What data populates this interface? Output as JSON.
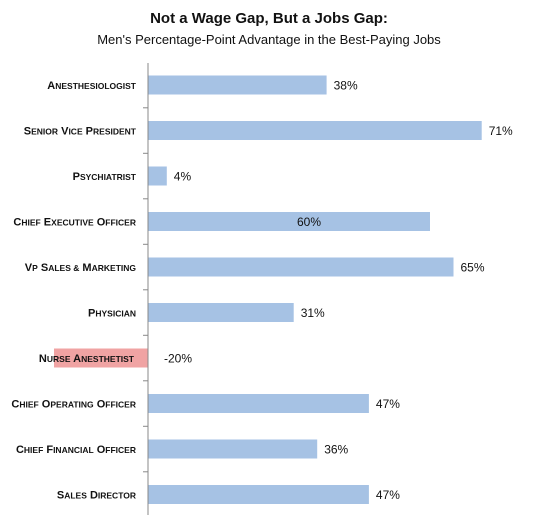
{
  "chart_data": {
    "type": "bar",
    "orientation": "horizontal",
    "title": "Not a Wage Gap, But a Jobs Gap:",
    "subtitle": "Men's Percentage-Point Advantage in the Best-Paying Jobs",
    "xlabel": "",
    "ylabel": "",
    "categories": [
      "Anesthesiologist",
      "Senior Vice President",
      "Psychiatrist",
      "Chief Executive Officer",
      "VP Sales & Marketing",
      "Physician",
      "Nurse Anesthetist",
      "Chief Operating Officer",
      "Chief Financial Officer",
      "Sales Director"
    ],
    "values": [
      38,
      71,
      4,
      60,
      65,
      31,
      -20,
      47,
      36,
      47
    ],
    "value_labels": [
      "38%",
      "71%",
      "4%",
      "60%",
      "65%",
      "31%",
      "-20%",
      "47%",
      "36%",
      "47%"
    ],
    "xlim": [
      -20,
      75
    ],
    "grid": false,
    "legend": "none",
    "colors": {
      "positive": "#a6c2e4",
      "negative": "#f0a3a3",
      "axis": "#888888",
      "text": "#111111"
    }
  }
}
